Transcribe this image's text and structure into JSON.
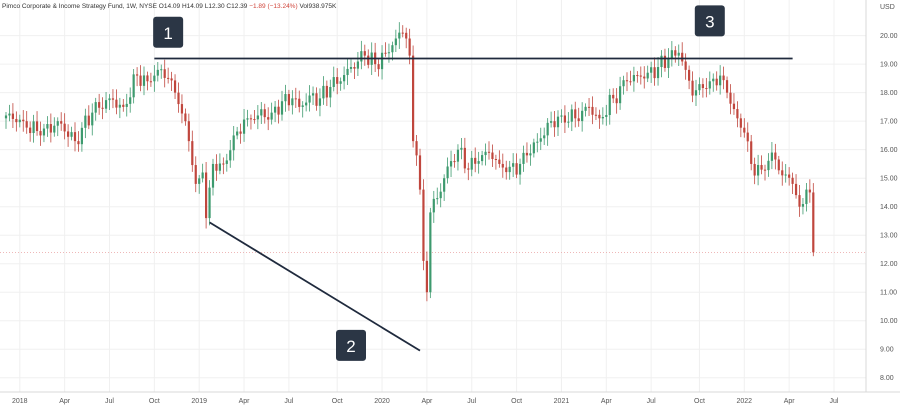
{
  "header": {
    "symbol": "Pimco Corporate & Income Strategy Fund, 1W, NYSE",
    "open": "O14.09",
    "high": "H14.09",
    "low": "L12.30",
    "close": "C12.39",
    "change": "−1.89 (−13.24%)",
    "volume": "Vol938.975K"
  },
  "chart_data": {
    "type": "candlestick",
    "currency_label": "USD",
    "ylim": [
      7.5,
      20.9
    ],
    "y_ticks": [
      "8.00",
      "9.00",
      "10.00",
      "11.00",
      "12.00",
      "13.00",
      "14.00",
      "15.00",
      "16.00",
      "17.00",
      "18.00",
      "19.00",
      "20.00"
    ],
    "x_ticks": [
      "2018",
      "Apr",
      "Jul",
      "Oct",
      "2019",
      "Apr",
      "Jul",
      "Oct",
      "2020",
      "Apr",
      "Jul",
      "Oct",
      "2021",
      "Apr",
      "Jul",
      "Oct",
      "2022",
      "Apr",
      "Jul"
    ],
    "x_tick_index": [
      4,
      17,
      30,
      43,
      56,
      69,
      82,
      96,
      109,
      122,
      135,
      148,
      161,
      174,
      187,
      201,
      214,
      227,
      240
    ],
    "last_price": 12.39,
    "colors": {
      "up": "#3d9a6e",
      "down": "#c0463d",
      "line": "#1f2a3d",
      "marker_bg": "#2b3645",
      "grid": "#f0f0f0",
      "price_line": "#e8a0a0"
    },
    "anchors": [
      [
        0,
        17.2
      ],
      [
        5,
        17.0
      ],
      [
        10,
        16.5
      ],
      [
        15,
        17.0
      ],
      [
        20,
        16.3
      ],
      [
        25,
        17.3
      ],
      [
        30,
        17.8
      ],
      [
        34,
        17.5
      ],
      [
        38,
        18.6
      ],
      [
        41,
        18.4
      ],
      [
        44,
        18.8
      ],
      [
        47,
        18.5
      ],
      [
        50,
        17.6
      ],
      [
        53,
        16.3
      ],
      [
        55,
        14.8
      ],
      [
        57,
        15.2
      ],
      [
        58,
        13.6
      ],
      [
        60,
        15.5
      ],
      [
        63,
        15.5
      ],
      [
        66,
        16.5
      ],
      [
        70,
        17.1
      ],
      [
        73,
        17.2
      ],
      [
        77,
        17.3
      ],
      [
        80,
        17.7
      ],
      [
        83,
        17.8
      ],
      [
        85,
        17.5
      ],
      [
        88,
        17.9
      ],
      [
        91,
        17.8
      ],
      [
        94,
        18.2
      ],
      [
        97,
        18.4
      ],
      [
        100,
        18.9
      ],
      [
        104,
        19.3
      ],
      [
        107,
        19.0
      ],
      [
        110,
        19.4
      ],
      [
        113,
        19.9
      ],
      [
        115,
        20.1
      ],
      [
        116,
        19.9
      ],
      [
        117,
        19.3
      ],
      [
        118,
        16.3
      ],
      [
        119,
        15.8
      ],
      [
        120,
        14.6
      ],
      [
        121,
        12.1
      ],
      [
        122,
        11.0
      ],
      [
        123,
        13.8
      ],
      [
        125,
        14.3
      ],
      [
        127,
        15.0
      ],
      [
        129,
        15.6
      ],
      [
        131,
        16.0
      ],
      [
        134,
        15.3
      ],
      [
        137,
        15.6
      ],
      [
        140,
        15.9
      ],
      [
        143,
        15.5
      ],
      [
        146,
        15.4
      ],
      [
        149,
        15.5
      ],
      [
        151,
        15.8
      ],
      [
        155,
        16.4
      ],
      [
        158,
        17.0
      ],
      [
        161,
        17.2
      ],
      [
        165,
        17.1
      ],
      [
        169,
        17.5
      ],
      [
        172,
        17.1
      ],
      [
        176,
        17.8
      ],
      [
        180,
        18.4
      ],
      [
        183,
        18.6
      ],
      [
        186,
        18.7
      ],
      [
        189,
        18.9
      ],
      [
        192,
        19.2
      ],
      [
        194,
        19.3
      ],
      [
        195,
        19.4
      ],
      [
        197,
        18.8
      ],
      [
        199,
        17.9
      ],
      [
        201,
        18.3
      ],
      [
        204,
        18.4
      ],
      [
        207,
        18.6
      ],
      [
        209,
        18.0
      ],
      [
        212,
        17.1
      ],
      [
        214,
        16.6
      ],
      [
        216,
        15.5
      ],
      [
        219,
        15.3
      ],
      [
        222,
        15.9
      ],
      [
        225,
        15.1
      ],
      [
        228,
        14.8
      ],
      [
        230,
        14.0
      ],
      [
        232,
        14.6
      ],
      [
        233,
        14.5
      ],
      [
        234,
        12.4
      ]
    ],
    "annotations": {
      "resistance_line": {
        "start_index": 43,
        "end_index": 228,
        "price": 19.2
      },
      "trend_line": {
        "start": [
          59,
          13.45
        ],
        "end": [
          120,
          8.95
        ]
      },
      "markers": [
        {
          "label": "1",
          "index": 47,
          "price": 20.1
        },
        {
          "label": "2",
          "index": 100,
          "price": 9.12
        },
        {
          "label": "3",
          "index": 204,
          "price": 20.5
        }
      ]
    }
  }
}
